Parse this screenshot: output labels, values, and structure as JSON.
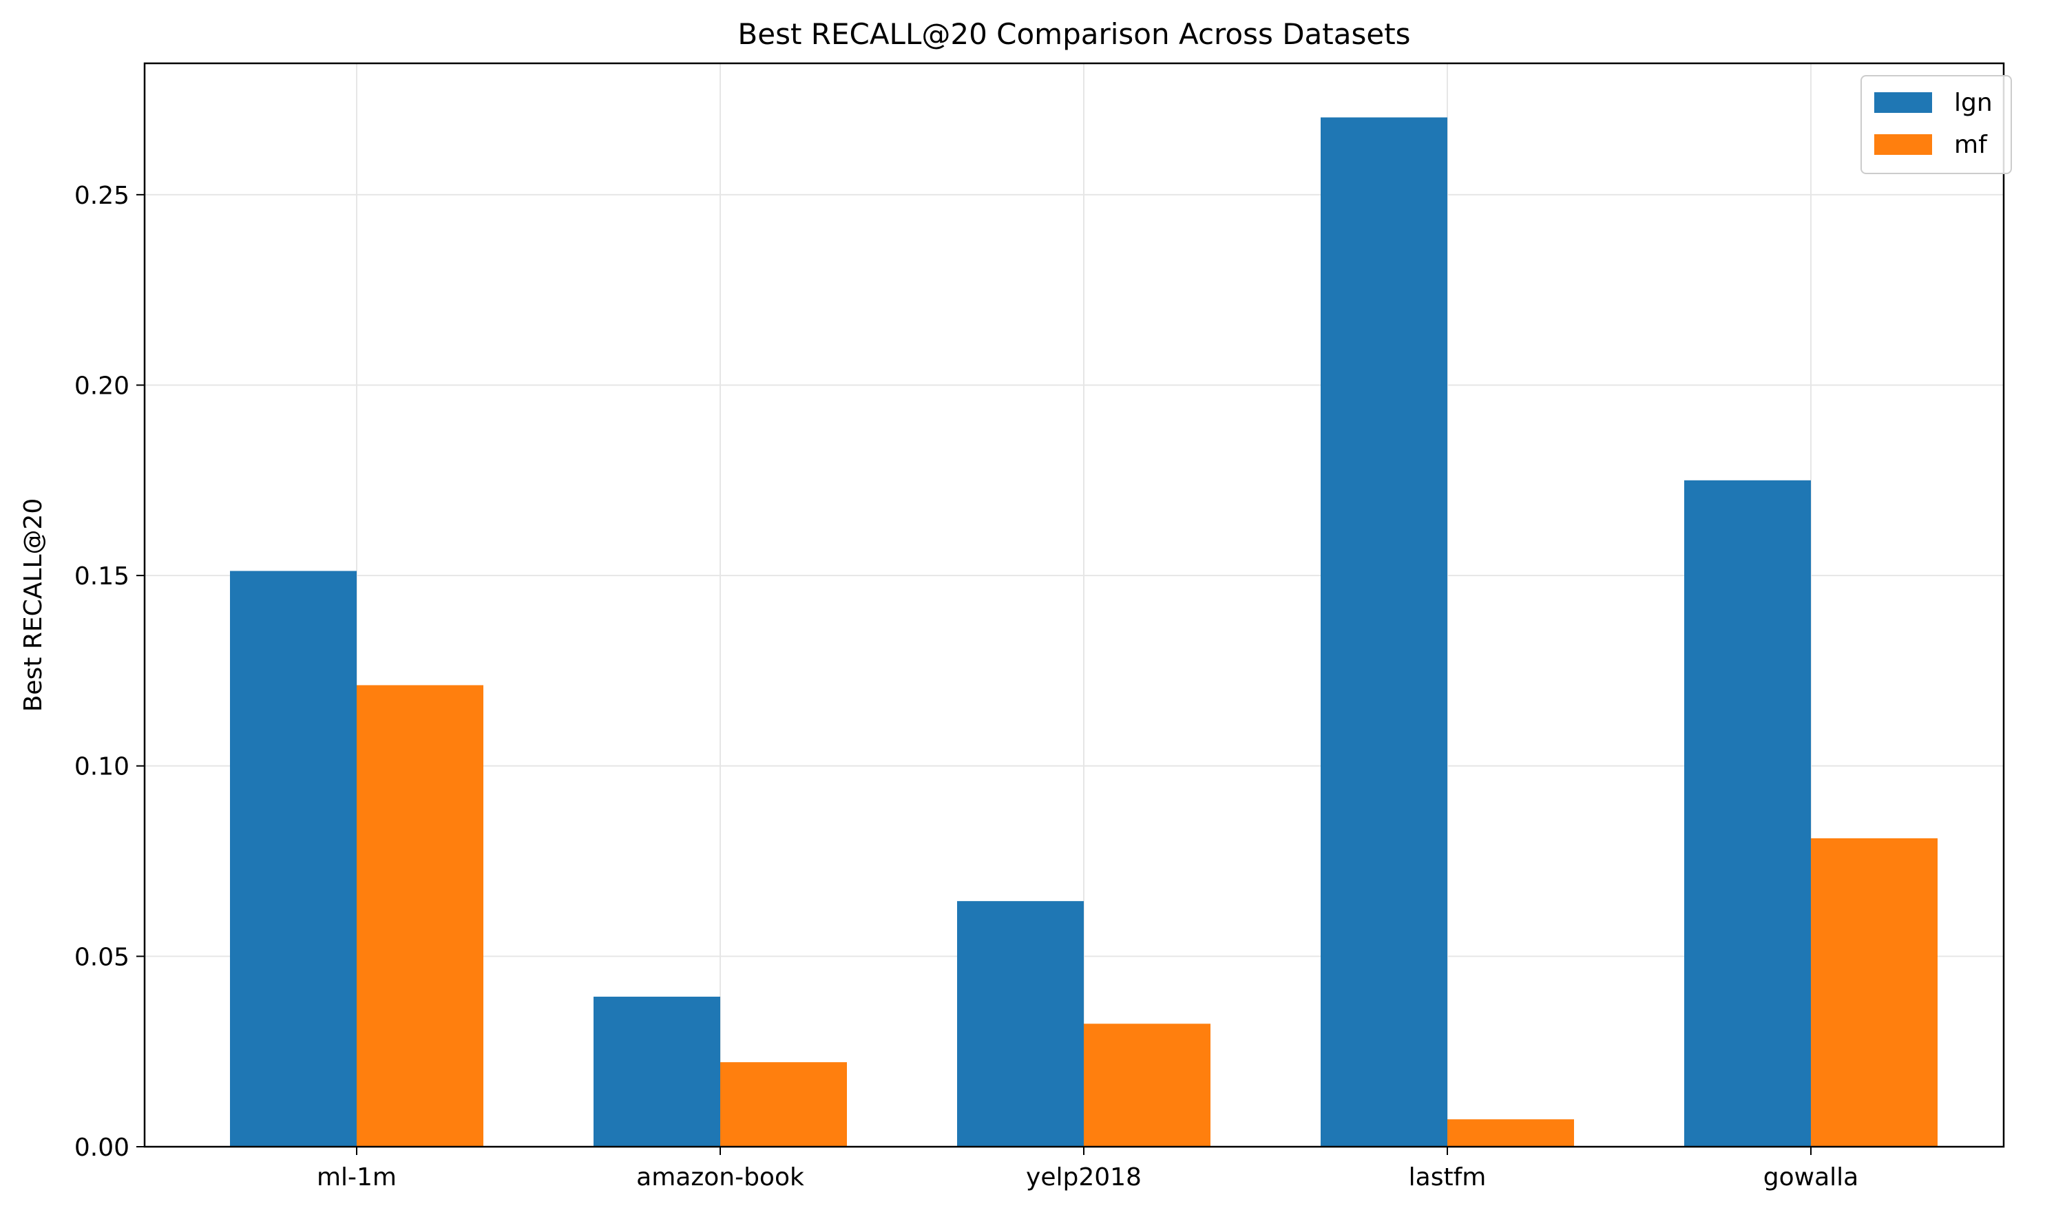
{
  "chart_data": {
    "type": "bar",
    "title": "Best RECALL@20 Comparison Across Datasets",
    "xlabel": "",
    "ylabel": "Best RECALL@20",
    "categories": [
      "ml-1m",
      "amazon-book",
      "yelp2018",
      "lastfm",
      "gowalla"
    ],
    "series": [
      {
        "name": "lgn",
        "color": "#1f77b4",
        "values": [
          0.1512,
          0.0394,
          0.0645,
          0.2703,
          0.175
        ]
      },
      {
        "name": "mf",
        "color": "#ff7f0e",
        "values": [
          0.1212,
          0.0222,
          0.0323,
          0.0072,
          0.081
        ]
      }
    ],
    "ylim": [
      0,
      0.2845
    ],
    "yticks": [
      "0.00",
      "0.05",
      "0.10",
      "0.15",
      "0.20",
      "0.25"
    ],
    "grid": true,
    "legend_position": "top-right"
  }
}
